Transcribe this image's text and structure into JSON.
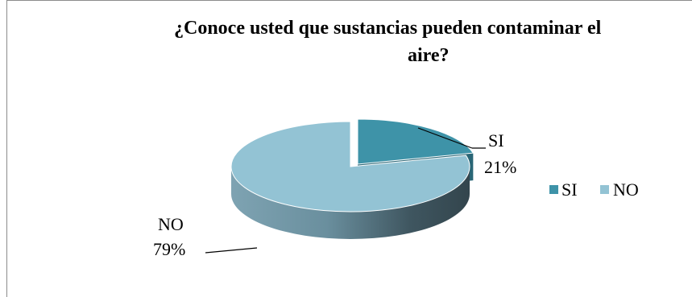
{
  "chart_data": {
    "type": "pie",
    "style": "3d-exploded",
    "title": "¿Conoce usted que sustancias pueden contaminar el aire?",
    "title_lines": [
      "¿Conoce usted que sustancias pueden contaminar el",
      "aire?"
    ],
    "categories": [
      "SI",
      "NO"
    ],
    "values": [
      21,
      79
    ],
    "data_labels": [
      {
        "category": "SI",
        "value": "21%"
      },
      {
        "category": "NO",
        "value": "79%"
      }
    ],
    "colors": {
      "SI": {
        "top": "#3e93a8",
        "side": "#2b6b7a"
      },
      "NO": {
        "top": "#93c3d4",
        "side": "#5c8596"
      }
    },
    "legend": {
      "position": "right",
      "entries": [
        {
          "label": "SI",
          "color": "#3e93a8"
        },
        {
          "label": "NO",
          "color": "#93c3d4"
        }
      ]
    }
  }
}
